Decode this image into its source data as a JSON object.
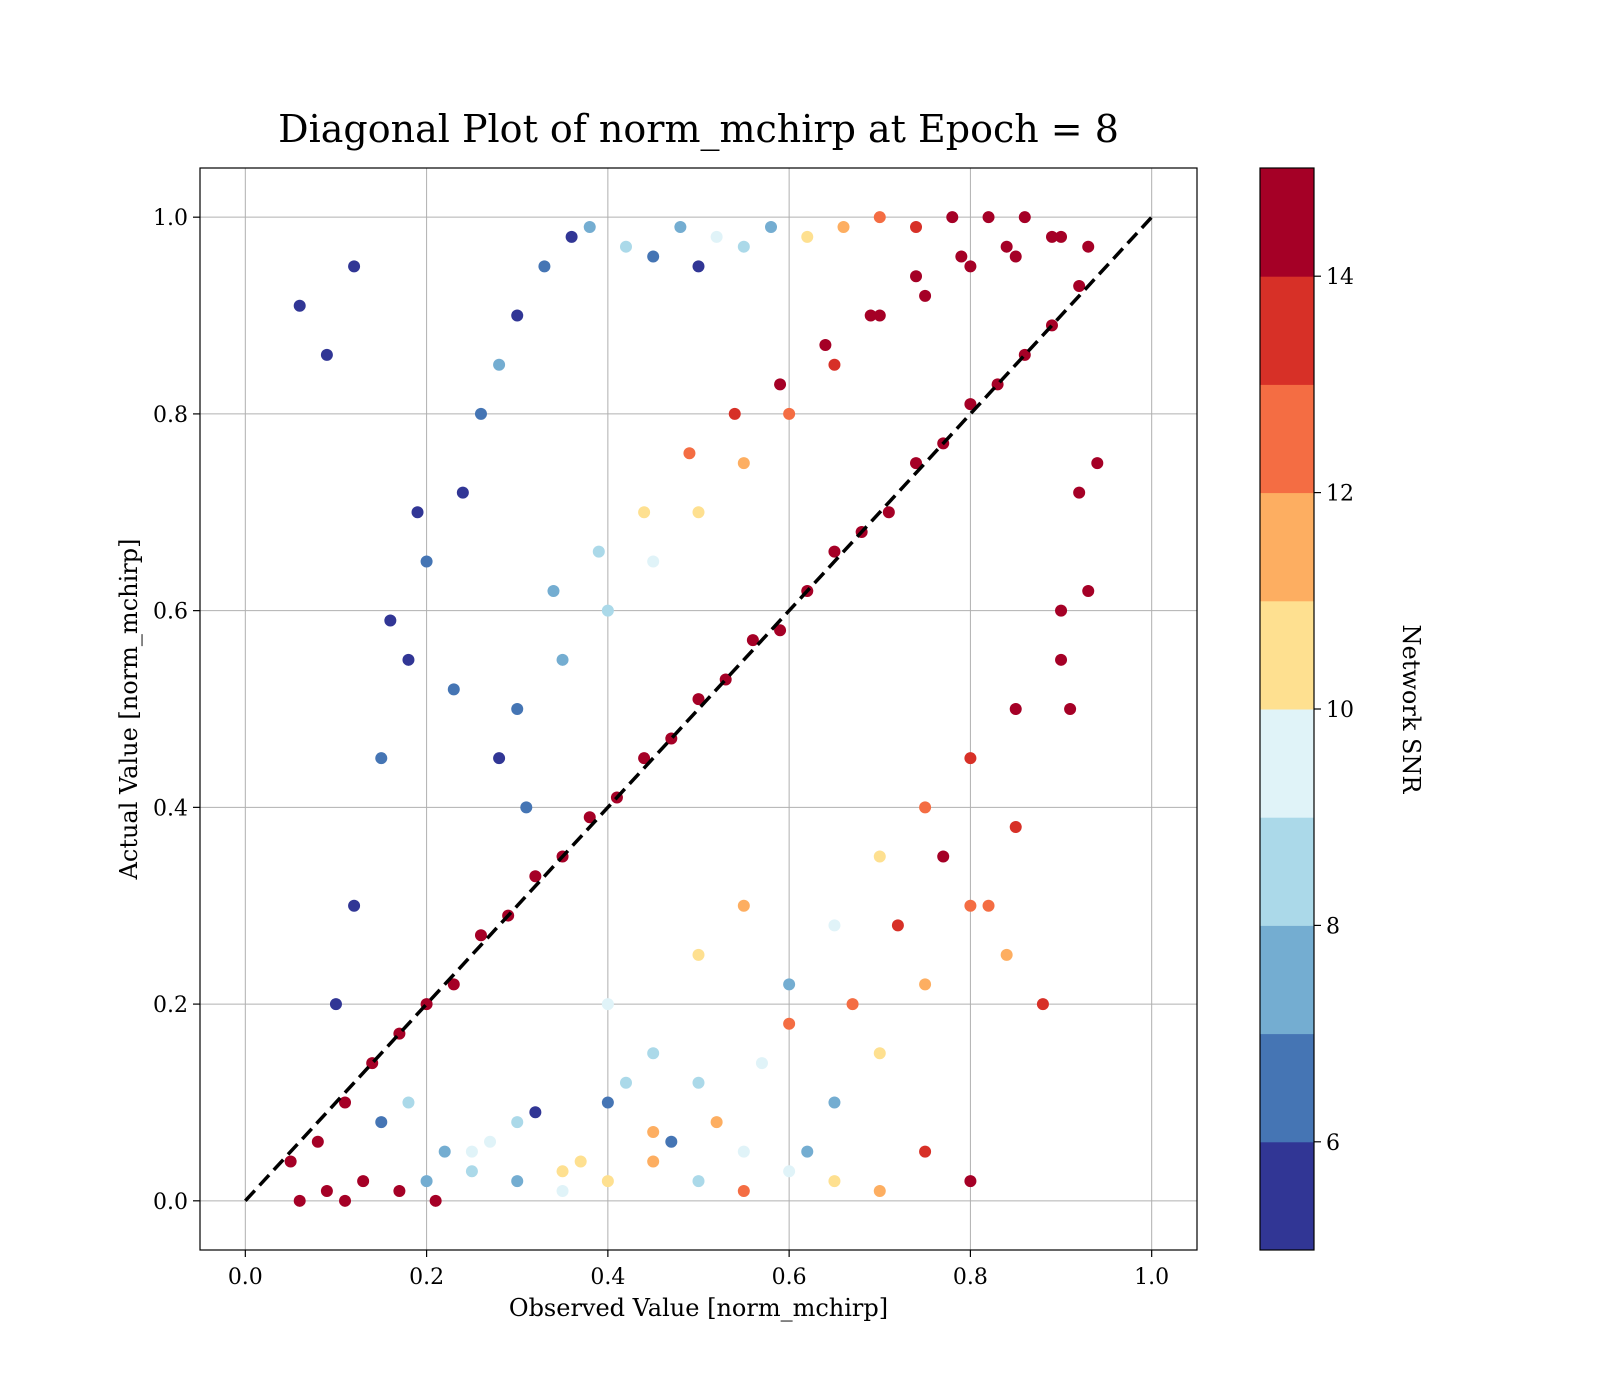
{
  "chart_data": {
    "type": "scatter",
    "title": "Diagonal Plot of norm_mchirp at Epoch = 8",
    "xlabel": "Observed Value [norm_mchirp]",
    "ylabel": "Actual Value [norm_mchirp]",
    "xlim": [
      -0.05,
      1.05
    ],
    "ylim": [
      -0.05,
      1.05
    ],
    "x_ticks": [
      0.0,
      0.2,
      0.4,
      0.6,
      0.8,
      1.0
    ],
    "x_tick_labels": [
      "0.0",
      "0.2",
      "0.4",
      "0.6",
      "0.8",
      "1.0"
    ],
    "y_ticks": [
      0.0,
      0.2,
      0.4,
      0.6,
      0.8,
      1.0
    ],
    "y_tick_labels": [
      "0.0",
      "0.2",
      "0.4",
      "0.6",
      "0.8",
      "1.0"
    ],
    "grid": true,
    "reference_line": {
      "x": [
        0.0,
        1.0
      ],
      "y": [
        0.0,
        1.0
      ],
      "style": "dashed",
      "color": "#000000"
    },
    "colorbar": {
      "label": "Network SNR",
      "range": [
        5,
        15
      ],
      "ticks": [
        6,
        8,
        10,
        12,
        14
      ],
      "tick_labels": [
        "6",
        "8",
        "10",
        "12",
        "14"
      ],
      "colors": [
        "#313695",
        "#4575b4",
        "#74add1",
        "#abd9e9",
        "#e0f3f8",
        "#fee090",
        "#fdae61",
        "#f46d43",
        "#d73027",
        "#a50026"
      ]
    },
    "points": {
      "x": [
        0.05,
        0.08,
        0.11,
        0.14,
        0.17,
        0.2,
        0.23,
        0.26,
        0.29,
        0.32,
        0.35,
        0.38,
        0.41,
        0.44,
        0.47,
        0.5,
        0.53,
        0.56,
        0.59,
        0.62,
        0.65,
        0.68,
        0.71,
        0.74,
        0.77,
        0.8,
        0.83,
        0.86,
        0.89,
        0.92,
        0.1,
        0.12,
        0.15,
        0.18,
        0.2,
        0.24,
        0.26,
        0.28,
        0.3,
        0.33,
        0.36,
        0.38,
        0.42,
        0.45,
        0.48,
        0.5,
        0.52,
        0.55,
        0.58,
        0.62,
        0.66,
        0.7,
        0.74,
        0.78,
        0.82,
        0.86,
        0.9,
        0.2,
        0.25,
        0.3,
        0.35,
        0.4,
        0.45,
        0.5,
        0.55,
        0.6,
        0.65,
        0.7,
        0.75,
        0.8,
        0.85,
        0.9,
        0.15,
        0.18,
        0.22,
        0.27,
        0.32,
        0.37,
        0.42,
        0.47,
        0.52,
        0.57,
        0.62,
        0.67,
        0.72,
        0.77,
        0.06,
        0.09,
        0.12,
        0.16,
        0.19,
        0.23,
        0.28,
        0.31,
        0.34,
        0.39,
        0.44,
        0.49,
        0.54,
        0.59,
        0.64,
        0.69,
        0.74,
        0.79,
        0.84,
        0.89,
        0.93,
        0.4,
        0.45,
        0.5,
        0.55,
        0.6,
        0.65,
        0.7,
        0.75,
        0.8,
        0.85,
        0.9,
        0.92,
        0.3,
        0.35,
        0.4,
        0.45,
        0.5,
        0.55,
        0.6,
        0.65,
        0.7,
        0.75,
        0.8,
        0.85,
        0.25,
        0.3,
        0.35,
        0.4,
        0.45,
        0.5,
        0.55,
        0.6,
        0.65,
        0.7,
        0.75,
        0.8,
        0.82,
        0.84,
        0.88,
        0.91,
        0.93,
        0.94,
        0.06,
        0.09,
        0.11,
        0.13,
        0.17,
        0.21
      ],
      "y": [
        0.04,
        0.06,
        0.1,
        0.14,
        0.17,
        0.2,
        0.22,
        0.27,
        0.29,
        0.33,
        0.35,
        0.39,
        0.41,
        0.45,
        0.47,
        0.51,
        0.53,
        0.57,
        0.58,
        0.62,
        0.66,
        0.68,
        0.7,
        0.75,
        0.77,
        0.81,
        0.83,
        0.86,
        0.89,
        0.93,
        0.2,
        0.3,
        0.45,
        0.55,
        0.65,
        0.72,
        0.8,
        0.85,
        0.9,
        0.95,
        0.98,
        0.99,
        0.97,
        0.96,
        0.99,
        0.95,
        0.98,
        0.97,
        0.99,
        0.98,
        0.99,
        1.0,
        0.99,
        1.0,
        1.0,
        1.0,
        0.98,
        0.02,
        0.05,
        0.08,
        0.03,
        0.1,
        0.07,
        0.12,
        0.05,
        0.18,
        0.1,
        0.15,
        0.22,
        0.3,
        0.38,
        0.55,
        0.08,
        0.1,
        0.05,
        0.06,
        0.09,
        0.04,
        0.12,
        0.06,
        0.08,
        0.14,
        0.05,
        0.2,
        0.28,
        0.35,
        0.91,
        0.86,
        0.95,
        0.59,
        0.7,
        0.52,
        0.45,
        0.4,
        0.62,
        0.66,
        0.7,
        0.76,
        0.8,
        0.83,
        0.87,
        0.9,
        0.94,
        0.96,
        0.97,
        0.98,
        0.97,
        0.2,
        0.15,
        0.25,
        0.3,
        0.22,
        0.28,
        0.35,
        0.4,
        0.45,
        0.5,
        0.6,
        0.72,
        0.5,
        0.55,
        0.6,
        0.65,
        0.7,
        0.75,
        0.8,
        0.85,
        0.9,
        0.92,
        0.95,
        0.96,
        0.03,
        0.02,
        0.01,
        0.02,
        0.04,
        0.02,
        0.01,
        0.03,
        0.02,
        0.01,
        0.05,
        0.02,
        0.3,
        0.25,
        0.2,
        0.5,
        0.62,
        0.75,
        0.0,
        0.01,
        0.0,
        0.02,
        0.01,
        0.0
      ],
      "snr": [
        15,
        15,
        15,
        15,
        15,
        15,
        15,
        15,
        15,
        15,
        15,
        15,
        15,
        15,
        15,
        15,
        15,
        15,
        15,
        15,
        15,
        15,
        15,
        15,
        15,
        15,
        15,
        15,
        15,
        15,
        5,
        5,
        6,
        5,
        6,
        5,
        6,
        7,
        5,
        6,
        5,
        7,
        8,
        6,
        7,
        5,
        9,
        8,
        7,
        10,
        11,
        12,
        13,
        14,
        15,
        15,
        15,
        7,
        9,
        8,
        10,
        6,
        11,
        8,
        9,
        12,
        7,
        10,
        11,
        12,
        13,
        14,
        6,
        8,
        7,
        9,
        5,
        10,
        8,
        6,
        11,
        9,
        7,
        12,
        13,
        14,
        5,
        5,
        5,
        5,
        5,
        6,
        5,
        6,
        7,
        8,
        10,
        12,
        13,
        14,
        15,
        15,
        15,
        15,
        15,
        15,
        15,
        9,
        8,
        10,
        11,
        7,
        9,
        10,
        12,
        13,
        14,
        15,
        15,
        6,
        7,
        8,
        9,
        10,
        11,
        12,
        13,
        14,
        15,
        15,
        15,
        8,
        7,
        9,
        10,
        11,
        8,
        12,
        9,
        10,
        11,
        13,
        14,
        12,
        11,
        13,
        14,
        15,
        15,
        15,
        15,
        15,
        15,
        15,
        15
      ]
    }
  }
}
